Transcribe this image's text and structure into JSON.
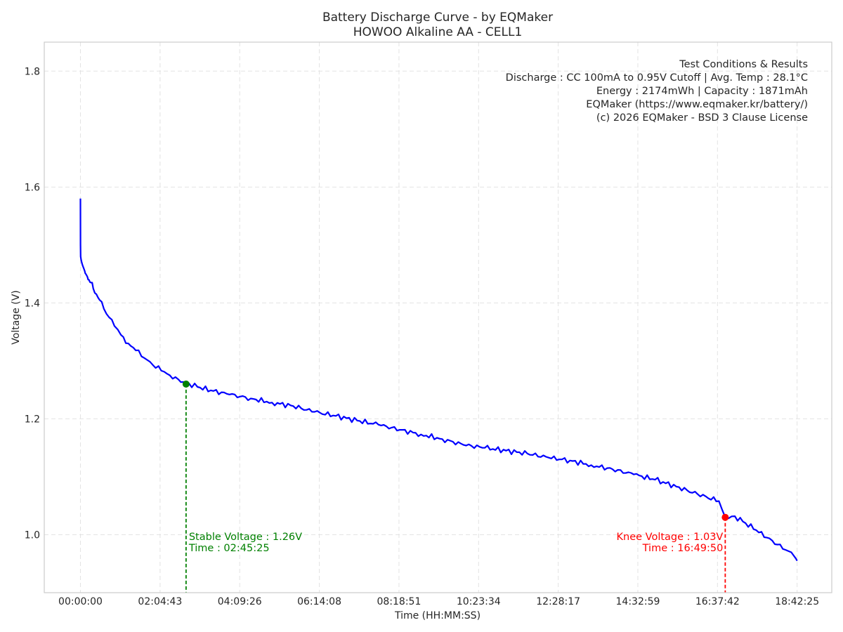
{
  "chart_data": {
    "type": "line",
    "title": "Battery Discharge Curve - by EQMaker",
    "subtitle": "HOWOO Alkaline AA - CELL1",
    "xlabel": "Time (HH:MM:SS)",
    "ylabel": "Voltage (V)",
    "x_tick_labels": [
      "00:00:00",
      "02:04:43",
      "04:09:26",
      "06:14:08",
      "08:18:51",
      "10:23:34",
      "12:28:17",
      "14:32:59",
      "16:37:42",
      "18:42:25"
    ],
    "x_tick_seconds": [
      0,
      7483,
      14966,
      22448,
      29931,
      37414,
      44897,
      52379,
      59862,
      67345
    ],
    "y_ticks": [
      1.0,
      1.2,
      1.4,
      1.6,
      1.8
    ],
    "y_tick_labels": [
      "1.0",
      "1.2",
      "1.4",
      "1.6",
      "1.8"
    ],
    "xlim_seconds": [
      -3400,
      70600
    ],
    "ylim": [
      0.9,
      1.85
    ],
    "grid": true,
    "series": [
      {
        "color": "#0000ff",
        "x_seconds": [
          0,
          5,
          20,
          60,
          120,
          200,
          300,
          400,
          500,
          650,
          800,
          1000,
          1200,
          1500,
          1800,
          2200,
          2700,
          3200,
          3800,
          4500,
          5200,
          6000,
          6800,
          7600,
          8400,
          9200,
          9925,
          11000,
          12500,
          14000,
          16000,
          18000,
          20000,
          22000,
          24000,
          26000,
          28000,
          30000,
          32000,
          34000,
          36000,
          38000,
          40000,
          42000,
          44000,
          46000,
          48000,
          50000,
          52000,
          54000,
          56000,
          58000,
          60000,
          60590,
          61500,
          62500,
          63500,
          64500,
          65500,
          66500,
          67100,
          67345
        ],
        "voltage": [
          1.58,
          1.5,
          1.48,
          1.475,
          1.47,
          1.465,
          1.46,
          1.455,
          1.45,
          1.445,
          1.44,
          1.435,
          1.425,
          1.415,
          1.405,
          1.39,
          1.375,
          1.36,
          1.345,
          1.33,
          1.318,
          1.305,
          1.293,
          1.283,
          1.275,
          1.268,
          1.262,
          1.255,
          1.248,
          1.242,
          1.235,
          1.228,
          1.222,
          1.212,
          1.205,
          1.197,
          1.19,
          1.181,
          1.173,
          1.165,
          1.155,
          1.15,
          1.145,
          1.14,
          1.133,
          1.128,
          1.12,
          1.113,
          1.104,
          1.095,
          1.083,
          1.07,
          1.058,
          1.03,
          1.032,
          1.02,
          1.008,
          0.995,
          0.983,
          0.972,
          0.962,
          0.955
        ]
      }
    ],
    "annotations": {
      "stable": {
        "time_seconds": 9925,
        "voltage": 1.26,
        "label_voltage": "Stable Voltage : 1.26V",
        "label_time": "Time : 02:45:25",
        "color": "#008000"
      },
      "knee": {
        "time_seconds": 60590,
        "voltage": 1.03,
        "label_voltage": "Knee Voltage : 1.03V",
        "label_time": "Time : 16:49:50",
        "color": "#ff0000"
      }
    },
    "info_box": {
      "position": "top-right",
      "lines": [
        "Test Conditions & Results",
        "Discharge : CC 100mA to 0.95V Cutoff | Avg. Temp : 28.1°C",
        "Energy : 2174mWh | Capacity : 1871mAh",
        "EQMaker (https://www.eqmaker.kr/battery/)",
        "(c) 2026 EQMaker - BSD 3 Clause License"
      ]
    }
  }
}
